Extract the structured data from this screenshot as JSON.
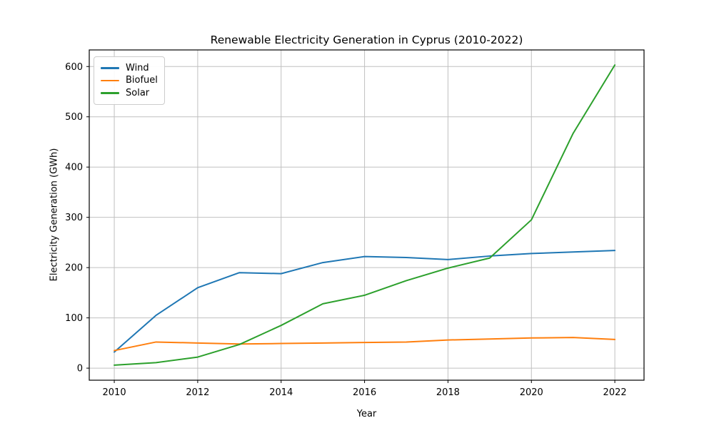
{
  "figure": {
    "background": "#ffffff",
    "text_color": "#000000",
    "grid_color": "#c0c0c0",
    "spine_color": "#000000"
  },
  "chart_data": {
    "type": "line",
    "title": "Renewable Electricity Generation in Cyprus (2010-2022)",
    "xlabel": "Year",
    "ylabel": "Electricity Generation (GWh)",
    "x": [
      2010,
      2011,
      2012,
      2013,
      2014,
      2015,
      2016,
      2017,
      2018,
      2019,
      2020,
      2021,
      2022
    ],
    "series": [
      {
        "name": "Wind",
        "color": "#1f77b4",
        "values": [
          32,
          105,
          160,
          190,
          188,
          210,
          222,
          220,
          216,
          223,
          228,
          231,
          234
        ]
      },
      {
        "name": "Biofuel",
        "color": "#ff7f0e",
        "values": [
          35,
          52,
          50,
          48,
          49,
          50,
          51,
          52,
          56,
          58,
          60,
          61,
          57
        ]
      },
      {
        "name": "Solar",
        "color": "#2ca02c",
        "values": [
          6,
          11,
          22,
          47,
          85,
          128,
          145,
          174,
          199,
          219,
          295,
          467,
          603
        ]
      }
    ],
    "xticks": [
      2010,
      2012,
      2014,
      2016,
      2018,
      2020,
      2022
    ],
    "yticks": [
      0,
      100,
      200,
      300,
      400,
      500,
      600
    ],
    "xlim": [
      2009.4,
      2022.7
    ],
    "ylim": [
      -24,
      633
    ],
    "grid": true,
    "legend_position": "upper left"
  }
}
